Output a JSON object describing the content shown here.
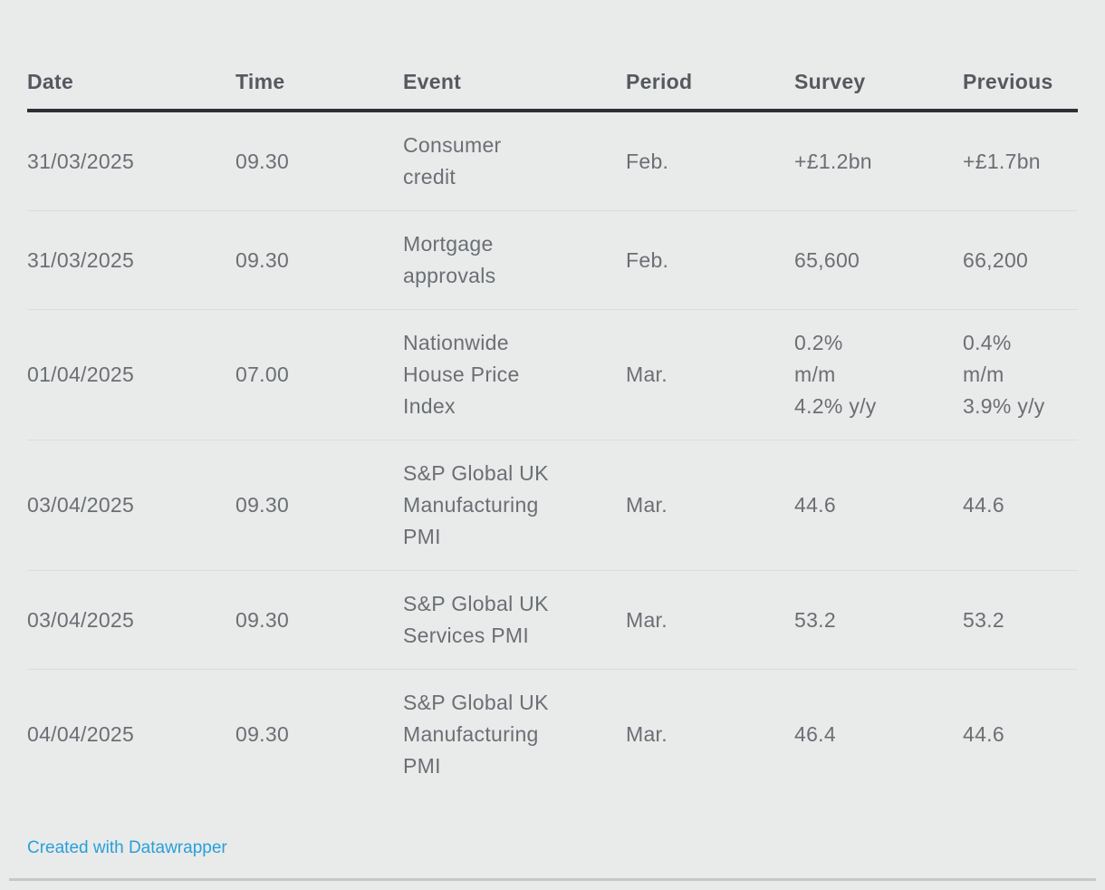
{
  "chart_data": {
    "type": "table",
    "title": "",
    "columns": [
      "Date",
      "Time",
      "Event",
      "Period",
      "Survey",
      "Previous"
    ],
    "rows": [
      [
        "31/03/2025",
        "09.30",
        "Consumer credit",
        "Feb.",
        "+£1.2bn",
        "+£1.7bn"
      ],
      [
        "31/03/2025",
        "09.30",
        "Mortgage approvals",
        "Feb.",
        "65,600",
        "66,200"
      ],
      [
        "01/04/2025",
        "07.00",
        "Nationwide House Price Index",
        "Mar.",
        "0.2% m/m 4.2% y/y",
        "0.4% m/m 3.9% y/y"
      ],
      [
        "03/04/2025",
        "09.30",
        "S&P Global UK Manufacturing PMI",
        "Mar.",
        "44.6",
        "44.6"
      ],
      [
        "03/04/2025",
        "09.30",
        "S&P Global UK Services PMI",
        "Mar.",
        "53.2",
        "53.2"
      ],
      [
        "04/04/2025",
        "09.30",
        "S&P Global UK Manufacturing PMI",
        "Mar.",
        "46.4",
        "44.6"
      ]
    ],
    "legend_position": "none",
    "grid": "row-dividers"
  },
  "table": {
    "columns": [
      "Date",
      "Time",
      "Event",
      "Period",
      "Survey",
      "Previous"
    ],
    "rows": [
      {
        "date": "31/03/2025",
        "time": "09.30",
        "event": "Consumer\ncredit",
        "period": "Feb.",
        "survey": "+£1.2bn",
        "previous": "+£1.7bn"
      },
      {
        "date": "31/03/2025",
        "time": "09.30",
        "event": "Mortgage\napprovals",
        "period": "Feb.",
        "survey": "65,600",
        "previous": "66,200"
      },
      {
        "date": "01/04/2025",
        "time": "07.00",
        "event": "Nationwide\nHouse Price\nIndex",
        "period": "Mar.",
        "survey": "0.2%\nm/m\n4.2% y/y",
        "previous": "0.4%\nm/m\n3.9% y/y"
      },
      {
        "date": "03/04/2025",
        "time": "09.30",
        "event": "S&P Global UK\nManufacturing\nPMI",
        "period": "Mar.",
        "survey": "44.6",
        "previous": "44.6"
      },
      {
        "date": "03/04/2025",
        "time": "09.30",
        "event": "S&P Global UK\nServices PMI",
        "period": "Mar.",
        "survey": "53.2",
        "previous": "53.2"
      },
      {
        "date": "04/04/2025",
        "time": "09.30",
        "event": "S&P Global UK\nManufacturing\nPMI",
        "period": "Mar.",
        "survey": "46.4",
        "previous": "44.6"
      }
    ]
  },
  "footer": {
    "attribution": "Created with Datawrapper"
  },
  "colors": {
    "background": "#e9eaea",
    "header_text": "#55595f",
    "body_text": "#6b6f74",
    "header_rule": "#2e3033",
    "row_divider": "#dcdddd",
    "link": "#29a0d9",
    "bottom_rule": "#c6c7c7"
  }
}
